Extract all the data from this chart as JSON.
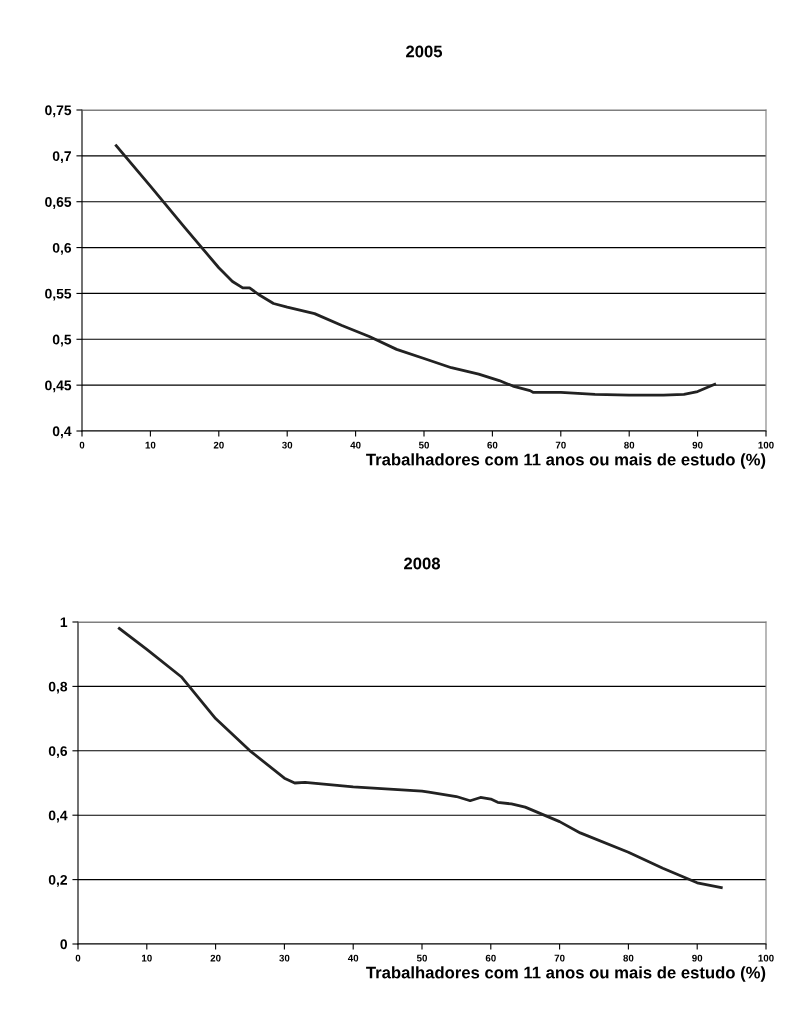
{
  "chart_data": [
    {
      "type": "line",
      "title": "2005",
      "xlabel": "Trabalhadores com 11 anos ou mais de estudo (%)",
      "grid": "y",
      "xlim": [
        0,
        100
      ],
      "xticks": [
        0,
        10,
        20,
        30,
        40,
        50,
        60,
        70,
        80,
        90,
        100
      ],
      "ylim": [
        0.4,
        0.75
      ],
      "yticks": [
        {
          "value": 0.4,
          "label": "0,4"
        },
        {
          "value": 0.45,
          "label": "0,45"
        },
        {
          "value": 0.5,
          "label": "0,5"
        },
        {
          "value": 0.55,
          "label": "0,55"
        },
        {
          "value": 0.6,
          "label": "0,6"
        },
        {
          "value": 0.65,
          "label": "0,65"
        },
        {
          "value": 0.7,
          "label": "0,7"
        },
        {
          "value": 0.75,
          "label": "0,75"
        }
      ],
      "series": [
        {
          "color": "#222222",
          "x": [
            5,
            10,
            15,
            20,
            22,
            23.5,
            24.5,
            26,
            28,
            30,
            34,
            38,
            42,
            46,
            50,
            54,
            58,
            61,
            63,
            65.5,
            66,
            70,
            75,
            80,
            85,
            88,
            90,
            92.5
          ],
          "values": [
            0.711,
            0.667,
            0.622,
            0.578,
            0.563,
            0.556,
            0.556,
            0.548,
            0.539,
            0.535,
            0.528,
            0.515,
            0.503,
            0.489,
            0.479,
            0.469,
            0.462,
            0.455,
            0.449,
            0.444,
            0.442,
            0.442,
            0.44,
            0.439,
            0.439,
            0.44,
            0.443,
            0.451
          ]
        }
      ]
    },
    {
      "type": "line",
      "title": "2008",
      "xlabel": "Trabalhadores com 11 anos ou mais de estudo (%)",
      "grid": "y",
      "xlim": [
        0,
        100
      ],
      "xticks": [
        0,
        10,
        20,
        30,
        40,
        50,
        60,
        70,
        80,
        90,
        100
      ],
      "ylim": [
        0,
        1
      ],
      "yticks": [
        0,
        {
          "value": 0.2,
          "label": "0,2"
        },
        {
          "value": 0.4,
          "label": "0,4"
        },
        {
          "value": 0.6,
          "label": "0,6"
        },
        {
          "value": 0.8,
          "label": "0,8"
        },
        1
      ],
      "series": [
        {
          "color": "#222222",
          "x": [
            6,
            10,
            15,
            20,
            25,
            30,
            31.5,
            33,
            40,
            50,
            51,
            55,
            57,
            58.5,
            60,
            61,
            63,
            65,
            70,
            73,
            80,
            85,
            90,
            93.5
          ],
          "values": [
            0.98,
            0.915,
            0.83,
            0.7,
            0.6,
            0.515,
            0.5,
            0.502,
            0.488,
            0.475,
            0.472,
            0.458,
            0.445,
            0.455,
            0.45,
            0.44,
            0.435,
            0.425,
            0.38,
            0.345,
            0.285,
            0.235,
            0.19,
            0.175
          ]
        }
      ]
    }
  ]
}
